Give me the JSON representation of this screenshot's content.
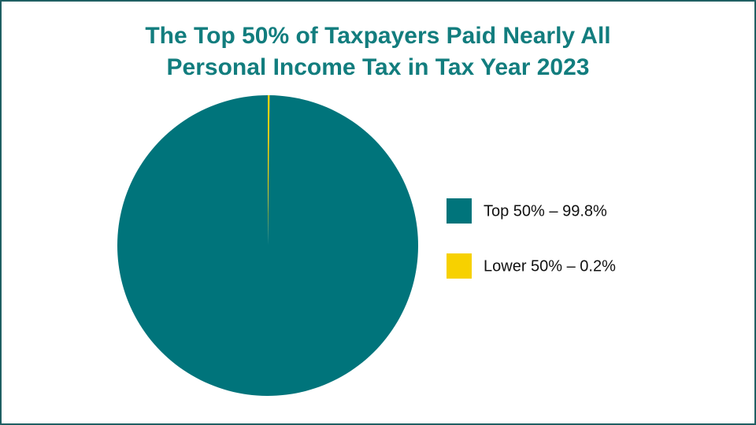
{
  "chart_data": {
    "type": "pie",
    "title": "The Top 50% of Taxpayers Paid Nearly All Personal Income Tax in Tax Year 2023",
    "categories": [
      "Top 50% – 99.8%",
      "Lower 50% – 0.2%"
    ],
    "values": [
      99.8,
      0.2
    ],
    "colors": [
      "#00747b",
      "#f7d100"
    ],
    "legend": "right"
  }
}
